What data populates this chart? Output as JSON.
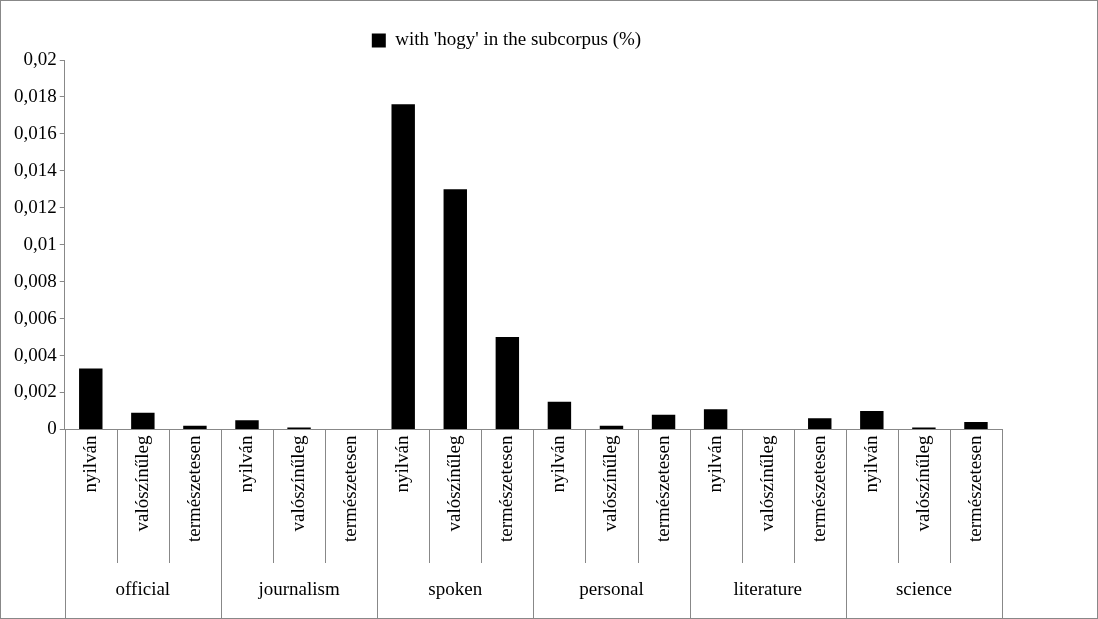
{
  "chart_data": {
    "type": "bar",
    "categories": [
      "nyilván",
      "valószínűleg",
      "természetesen",
      "nyilván",
      "valószínűleg",
      "természetesen",
      "nyilván",
      "valószínűleg",
      "természetesen",
      "nyilván",
      "valószínűleg",
      "természetesen",
      "nyilván",
      "valószínűleg",
      "természetesen",
      "nyilván",
      "valószínűleg",
      "természetesen"
    ],
    "series": [
      {
        "name": "with 'hogy' in the subcorpus (%)",
        "color": "#000000",
        "values": [
          0.0033,
          0.0009,
          0.0002,
          0.0005,
          0.0001,
          0,
          0.0176,
          0.013,
          0.005,
          0.0015,
          0.0002,
          0.0008,
          0.0011,
          0,
          0.0006,
          0.001,
          0.0001,
          0.0004
        ]
      }
    ],
    "annotations": [
      "official",
      "journalism",
      "spoken",
      "personal",
      "literature",
      "science"
    ],
    "ylim": [
      0,
      0.02
    ],
    "yticks": [
      0,
      {
        "value": 0.002,
        "label": "0,002"
      },
      {
        "value": 0.004,
        "label": "0,004"
      },
      {
        "value": 0.006,
        "label": "0,006"
      },
      {
        "value": 0.008,
        "label": "0,008"
      },
      {
        "value": 0.01,
        "label": "0,01"
      },
      {
        "value": 0.012,
        "label": "0,012"
      },
      {
        "value": 0.014,
        "label": "0,014"
      },
      {
        "value": 0.016,
        "label": "0,016"
      },
      {
        "value": 0.018,
        "label": "0,018"
      },
      {
        "value": 0.02,
        "label": "0,02"
      }
    ],
    "grid": false,
    "legend": "top"
  }
}
